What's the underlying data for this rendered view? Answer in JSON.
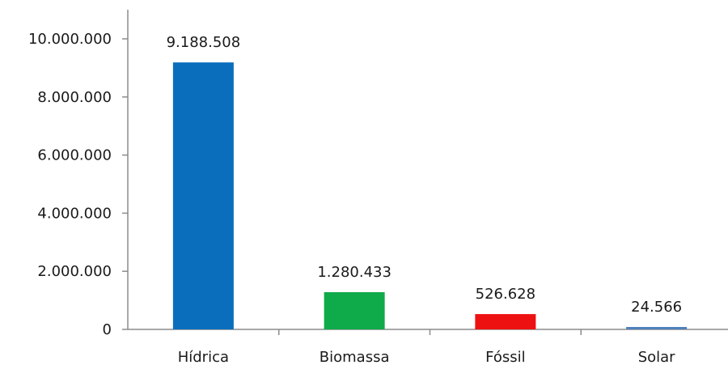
{
  "chart_data": {
    "type": "bar",
    "title": "",
    "xlabel": "",
    "ylabel": "",
    "categories": [
      "Hídrica",
      "Biomassa",
      "Fóssil",
      "Solar"
    ],
    "values": [
      9188508,
      1280433,
      526628,
      24566
    ],
    "data_labels": [
      "9.188.508",
      "1.280.433",
      "526.628",
      "24.566"
    ],
    "colors": [
      "#0a6ebd",
      "#0faa4a",
      "#ee1111",
      "#4f81bd"
    ],
    "ylim": [
      0,
      10000000
    ],
    "yticks": [
      0,
      2000000,
      4000000,
      6000000,
      8000000,
      10000000
    ],
    "ytick_labels": [
      "0",
      "2.000.000",
      "4.000.000",
      "6.000.000",
      "8.000.000",
      "10.000.000"
    ],
    "grid": false,
    "legend": "none"
  }
}
